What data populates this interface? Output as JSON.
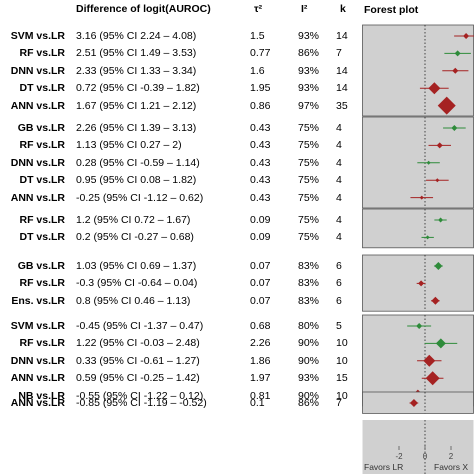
{
  "headers": {
    "diff": "Difference of logit(AUROC)",
    "tau": "τ²",
    "i2": "I²",
    "k": "k",
    "forest": "Forest plot"
  },
  "groups": [
    {
      "rows": [
        {
          "label": "SVM vs.LR",
          "diff": "3.16 (95% CI 2.24 – 4.08)",
          "tau": "1.5",
          "i2": "93%",
          "k": "14"
        },
        {
          "label": "RF vs.LR",
          "diff": "2.51 (95% CI 1.49 – 3.53)",
          "tau": "0.77",
          "i2": "86%",
          "k": "7"
        },
        {
          "label": "DNN vs.LR",
          "diff": "2.33 (95% CI 1.33 – 3.34)",
          "tau": "1.6",
          "i2": "93%",
          "k": "14"
        },
        {
          "label": "DT vs.LR",
          "diff": "0.72 (95% CI -0.39 – 1.82)",
          "tau": "1.95",
          "i2": "93%",
          "k": "14"
        },
        {
          "label": "ANN vs.LR",
          "diff": "1.67 (95% CI 1.21 – 2.12)",
          "tau": "0.86",
          "i2": "97%",
          "k": "35"
        }
      ]
    },
    {
      "rows": [
        {
          "label": "GB vs.LR",
          "diff": "2.26 (95% CI 1.39 – 3.13)",
          "tau": "0.43",
          "i2": "75%",
          "k": "4"
        },
        {
          "label": "RF vs.LR",
          "diff": "1.13 (95% CI 0.27 – 2)",
          "tau": "0.43",
          "i2": "75%",
          "k": "4"
        },
        {
          "label": "DNN vs.LR",
          "diff": "0.28 (95% CI -0.59 – 1.14)",
          "tau": "0.43",
          "i2": "75%",
          "k": "4"
        },
        {
          "label": "DT vs.LR",
          "diff": "0.95 (95% CI 0.08 – 1.82)",
          "tau": "0.43",
          "i2": "75%",
          "k": "4"
        },
        {
          "label": "ANN vs.LR",
          "diff": "-0.25 (95% CI -1.12 – 0.62)",
          "tau": "0.43",
          "i2": "75%",
          "k": "4"
        }
      ]
    },
    {
      "rows": [
        {
          "label": "RF vs.LR",
          "diff": "1.2 (95% CI 0.72 – 1.67)",
          "tau": "0.09",
          "i2": "75%",
          "k": "4"
        },
        {
          "label": "DT vs.LR",
          "diff": "0.2 (95% CI -0.27 – 0.68)",
          "tau": "0.09",
          "i2": "75%",
          "k": "4"
        }
      ]
    },
    {
      "rows": [
        {
          "label": "GB vs.LR",
          "diff": "1.03 (95% CI 0.69 – 1.37)",
          "tau": "0.07",
          "i2": "83%",
          "k": "6"
        },
        {
          "label": "RF vs.LR",
          "diff": "-0.3 (95% CI -0.64 – 0.04)",
          "tau": "0.07",
          "i2": "83%",
          "k": "6"
        },
        {
          "label": "Ens. vs.LR",
          "diff": "0.8 (95% CI 0.46 – 1.13)",
          "tau": "0.07",
          "i2": "83%",
          "k": "6"
        }
      ]
    },
    {
      "rows": [
        {
          "label": "SVM vs.LR",
          "diff": "-0.45 (95% CI -1.37 – 0.47)",
          "tau": "0.68",
          "i2": "80%",
          "k": "5"
        },
        {
          "label": "RF vs.LR",
          "diff": "1.22 (95% CI -0.03 – 2.48)",
          "tau": "2.26",
          "i2": "90%",
          "k": "10"
        },
        {
          "label": "DNN vs.LR",
          "diff": "0.33 (95% CI -0.61 – 1.27)",
          "tau": "1.86",
          "i2": "90%",
          "k": "10"
        },
        {
          "label": "ANN vs.LR",
          "diff": "0.59 (95% CI -0.25 – 1.42)",
          "tau": "1.97",
          "i2": "93%",
          "k": "15"
        },
        {
          "label": "NB vs.LR",
          "diff": "-0.55 (95% CI -1.22 – 0.12)",
          "tau": "0.81",
          "i2": "90%",
          "k": "10"
        }
      ]
    },
    {
      "rows": [
        {
          "label": "ANN vs.LR",
          "diff": "-0.85 (95% CI -1.19 – -0.52)",
          "tau": "0.1",
          "i2": "86%",
          "k": "7"
        }
      ]
    }
  ],
  "chart_data": {
    "type": "forest",
    "title": "Forest plot",
    "x_ticks": [
      -2,
      0,
      2
    ],
    "x_tick_labels": [
      "-2",
      "0",
      "2"
    ],
    "favors_left": "Favors LR",
    "favors_right": "Favors X",
    "reference_line": 0,
    "colors": {
      "positive": "#2e8b3a",
      "negative": "#a52222",
      "panel": "#d0d0d0",
      "border": "#555555"
    },
    "panels": [
      {
        "points": [
          {
            "est": 3.16,
            "lo": 2.24,
            "hi": 4.08,
            "color": "negative",
            "size": 3
          },
          {
            "est": 2.51,
            "lo": 1.49,
            "hi": 3.53,
            "color": "positive",
            "size": 3
          },
          {
            "est": 2.33,
            "lo": 1.33,
            "hi": 3.34,
            "color": "negative",
            "size": 3
          },
          {
            "est": 0.72,
            "lo": -0.39,
            "hi": 1.82,
            "color": "negative",
            "size": 6
          },
          {
            "est": 1.67,
            "lo": 1.21,
            "hi": 2.12,
            "color": "negative",
            "size": 9
          }
        ]
      },
      {
        "points": [
          {
            "est": 2.26,
            "lo": 1.39,
            "hi": 3.13,
            "color": "positive",
            "size": 3
          },
          {
            "est": 1.13,
            "lo": 0.27,
            "hi": 2.0,
            "color": "negative",
            "size": 3
          },
          {
            "est": 0.28,
            "lo": -0.59,
            "hi": 1.14,
            "color": "positive",
            "size": 2
          },
          {
            "est": 0.95,
            "lo": 0.08,
            "hi": 1.82,
            "color": "negative",
            "size": 2
          },
          {
            "est": -0.25,
            "lo": -1.12,
            "hi": 0.62,
            "color": "negative",
            "size": 2
          }
        ]
      },
      {
        "points": [
          {
            "est": 1.2,
            "lo": 0.72,
            "hi": 1.67,
            "color": "positive",
            "size": 2.5
          },
          {
            "est": 0.2,
            "lo": -0.27,
            "hi": 0.68,
            "color": "positive",
            "size": 2
          }
        ]
      },
      {
        "points": [
          {
            "est": 1.03,
            "lo": 0.69,
            "hi": 1.37,
            "color": "positive",
            "size": 4
          },
          {
            "est": -0.3,
            "lo": -0.64,
            "hi": 0.04,
            "color": "negative",
            "size": 3
          },
          {
            "est": 0.8,
            "lo": 0.46,
            "hi": 1.13,
            "color": "negative",
            "size": 4
          }
        ]
      },
      {
        "points": [
          {
            "est": -0.45,
            "lo": -1.37,
            "hi": 0.47,
            "color": "positive",
            "size": 3
          },
          {
            "est": 1.22,
            "lo": -0.03,
            "hi": 2.48,
            "color": "positive",
            "size": 5
          },
          {
            "est": 0.33,
            "lo": -0.61,
            "hi": 1.27,
            "color": "negative",
            "size": 6
          },
          {
            "est": 0.59,
            "lo": -0.25,
            "hi": 1.42,
            "color": "negative",
            "size": 7
          },
          {
            "est": -0.55,
            "lo": -1.22,
            "hi": 0.12,
            "color": "negative",
            "size": 6
          }
        ]
      },
      {
        "points": [
          {
            "est": -0.85,
            "lo": -1.19,
            "hi": -0.52,
            "color": "negative",
            "size": 4
          }
        ]
      }
    ]
  }
}
